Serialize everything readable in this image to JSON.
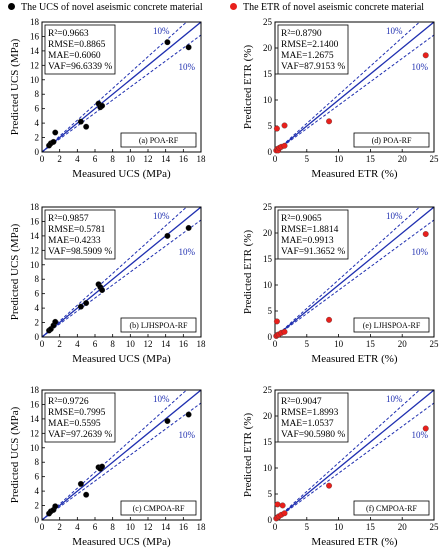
{
  "legend": {
    "ucs_label": "The UCS of novel aseismic concrete material",
    "etr_label": "The ETR of novel aseismic concrete material",
    "ucs_color": "#000000",
    "etr_color": "#e8201c"
  },
  "line_color": "#1f2fb0",
  "chart_data": [
    {
      "type": "scatter",
      "id": "a",
      "xlabel": "Measured UCS (MPa)",
      "ylabel": "Predicted UCS (MPa)",
      "xlim": [
        0,
        18
      ],
      "ylim": [
        0,
        18
      ],
      "xticks": [
        0,
        2,
        4,
        6,
        8,
        10,
        12,
        14,
        16,
        18
      ],
      "yticks": [
        0,
        2,
        4,
        6,
        8,
        10,
        12,
        14,
        16,
        18
      ],
      "band_labels": [
        "10%",
        "10%"
      ],
      "stats": [
        "R²=0.9663",
        "RMSE=0.8865",
        "MAE=0.6060",
        "VAF=96.6339 %"
      ],
      "tag": "(a) POA-RF",
      "points": [
        [
          0.8,
          0.9
        ],
        [
          1.0,
          1.2
        ],
        [
          1.3,
          1.4
        ],
        [
          1.5,
          2.7
        ],
        [
          4.4,
          4.2
        ],
        [
          5.0,
          3.5
        ],
        [
          6.4,
          6.7
        ],
        [
          6.6,
          6.2
        ],
        [
          6.8,
          6.4
        ],
        [
          14.2,
          15.2
        ],
        [
          16.6,
          14.5
        ]
      ],
      "color": "#000000"
    },
    {
      "type": "scatter",
      "id": "d",
      "xlabel": "Measured ETR (%)",
      "ylabel": "Predicted ETR (%)",
      "xlim": [
        0,
        25
      ],
      "ylim": [
        0,
        25
      ],
      "xticks": [
        0,
        5,
        10,
        15,
        20,
        25
      ],
      "yticks": [
        0,
        5,
        10,
        15,
        20,
        25
      ],
      "band_labels": [
        "10%",
        "10%"
      ],
      "stats": [
        "R²=0.8790",
        "RMSE=2.1400",
        "MAE=1.2675",
        "VAF=87.9153 %"
      ],
      "tag": "(d)  POA-RF",
      "points": [
        [
          0.2,
          0.3
        ],
        [
          0.4,
          0.6
        ],
        [
          0.5,
          0.3
        ],
        [
          0.7,
          0.8
        ],
        [
          1.0,
          1.0
        ],
        [
          1.5,
          1.2
        ],
        [
          0.3,
          4.5
        ],
        [
          1.5,
          5.1
        ],
        [
          8.5,
          5.9
        ],
        [
          23.7,
          18.6
        ]
      ],
      "color": "#e8201c"
    },
    {
      "type": "scatter",
      "id": "b",
      "xlabel": "Measured UCS (MPa)",
      "ylabel": "Predicted UCS (MPa)",
      "xlim": [
        0,
        18
      ],
      "ylim": [
        0,
        18
      ],
      "xticks": [
        0,
        2,
        4,
        6,
        8,
        10,
        12,
        14,
        16,
        18
      ],
      "yticks": [
        0,
        2,
        4,
        6,
        8,
        10,
        12,
        14,
        16,
        18
      ],
      "band_labels": [
        "10%",
        "10%"
      ],
      "stats": [
        "R²=0.9857",
        "RMSE=0.5781",
        "MAE=0.4233",
        "VAF=98.5909 %"
      ],
      "tag": "(b)  LJHSPOA-RF",
      "points": [
        [
          0.8,
          0.9
        ],
        [
          1.0,
          1.1
        ],
        [
          1.3,
          1.6
        ],
        [
          1.5,
          2.1
        ],
        [
          4.4,
          4.2
        ],
        [
          5.0,
          4.7
        ],
        [
          6.4,
          7.3
        ],
        [
          6.6,
          6.9
        ],
        [
          6.8,
          6.5
        ],
        [
          14.2,
          14.0
        ],
        [
          16.6,
          15.1
        ]
      ],
      "color": "#000000"
    },
    {
      "type": "scatter",
      "id": "e",
      "xlabel": "Measured ETR (%)",
      "ylabel": "Predicted ETR (%)",
      "xlim": [
        0,
        25
      ],
      "ylim": [
        0,
        25
      ],
      "xticks": [
        0,
        5,
        10,
        15,
        20,
        25
      ],
      "yticks": [
        0,
        5,
        10,
        15,
        20,
        25
      ],
      "band_labels": [
        "10%",
        "10%"
      ],
      "stats": [
        "R²=0.9065",
        "RMSE=1.8814",
        "MAE=0.9913",
        "VAF=91.3652 %"
      ],
      "tag": "(e)  LJHSPOA-RF",
      "points": [
        [
          0.2,
          0.2
        ],
        [
          0.4,
          0.4
        ],
        [
          0.6,
          0.5
        ],
        [
          1.0,
          0.8
        ],
        [
          1.5,
          1.0
        ],
        [
          0.3,
          3.0
        ],
        [
          8.5,
          3.3
        ],
        [
          23.7,
          19.8
        ]
      ],
      "color": "#e8201c"
    },
    {
      "type": "scatter",
      "id": "c",
      "xlabel": "Measured UCS (MPa)",
      "ylabel": "Predicted UCS (MPa)",
      "xlim": [
        0,
        18
      ],
      "ylim": [
        0,
        18
      ],
      "xticks": [
        0,
        2,
        4,
        6,
        8,
        10,
        12,
        14,
        16,
        18
      ],
      "yticks": [
        0,
        2,
        4,
        6,
        8,
        10,
        12,
        14,
        16,
        18
      ],
      "band_labels": [
        "10%",
        "10%"
      ],
      "stats": [
        "R²=0.9726",
        "RMSE=0.7995",
        "MAE=0.5595",
        "VAF=97.2639 %"
      ],
      "tag": "(c)  CMPOA-RF",
      "points": [
        [
          0.8,
          0.9
        ],
        [
          1.0,
          1.2
        ],
        [
          1.3,
          1.4
        ],
        [
          1.5,
          1.9
        ],
        [
          4.4,
          5.0
        ],
        [
          5.0,
          3.5
        ],
        [
          6.4,
          7.3
        ],
        [
          6.6,
          7.1
        ],
        [
          6.8,
          7.4
        ],
        [
          14.2,
          13.7
        ],
        [
          16.6,
          14.6
        ]
      ],
      "color": "#000000"
    },
    {
      "type": "scatter",
      "id": "f",
      "xlabel": "Measured ETR (%)",
      "ylabel": "Predicted ETR (%)",
      "xlim": [
        0,
        25
      ],
      "ylim": [
        0,
        25
      ],
      "xticks": [
        0,
        5,
        10,
        15,
        20,
        25
      ],
      "yticks": [
        0,
        5,
        10,
        15,
        20,
        25
      ],
      "band_labels": [
        "10%",
        "10%"
      ],
      "stats": [
        "R²=0.9047",
        "RMSE=1.8993",
        "MAE=1.0537",
        "VAF=90.5980 %"
      ],
      "tag": "(f)  CMPOA-RF",
      "points": [
        [
          0.2,
          0.3
        ],
        [
          0.4,
          0.5
        ],
        [
          0.6,
          0.7
        ],
        [
          1.0,
          1.0
        ],
        [
          1.5,
          1.3
        ],
        [
          0.4,
          3.0
        ],
        [
          1.2,
          2.8
        ],
        [
          8.5,
          6.6
        ],
        [
          23.7,
          17.6
        ]
      ],
      "color": "#e8201c"
    }
  ]
}
